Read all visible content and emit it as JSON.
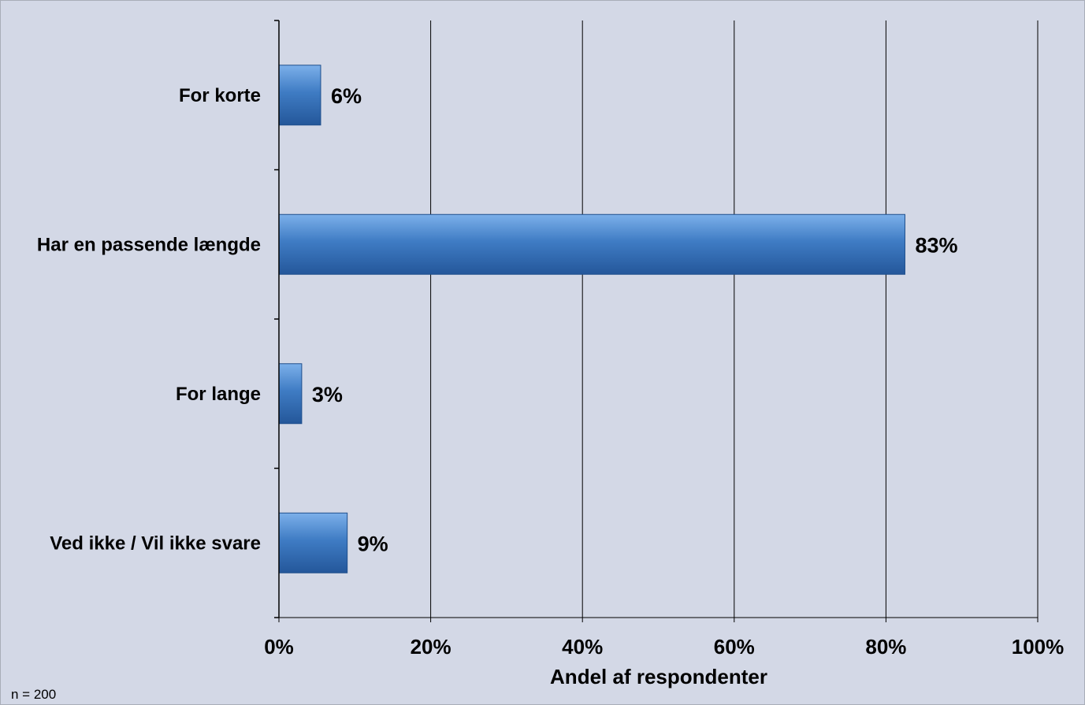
{
  "chart_data": {
    "type": "bar",
    "orientation": "horizontal",
    "categories": [
      "For korte",
      "Har en passende længde",
      "For lange",
      "Ved ikke / Vil ikke svare"
    ],
    "values": [
      5.5,
      82.5,
      3,
      9
    ],
    "data_labels": [
      "6%",
      "83%",
      "3%",
      "9%"
    ],
    "xlabel": "Andel af respondenter",
    "xlim": [
      0,
      100
    ],
    "xticks": [
      0,
      20,
      40,
      60,
      80,
      100
    ],
    "xtick_labels": [
      "0%",
      "20%",
      "40%",
      "60%",
      "80%",
      "100%"
    ],
    "grid": "vertical",
    "legend": "none",
    "bar_color": "#3f7cc4",
    "background_color": "#d3d8e6"
  },
  "footnote": "n = 200"
}
